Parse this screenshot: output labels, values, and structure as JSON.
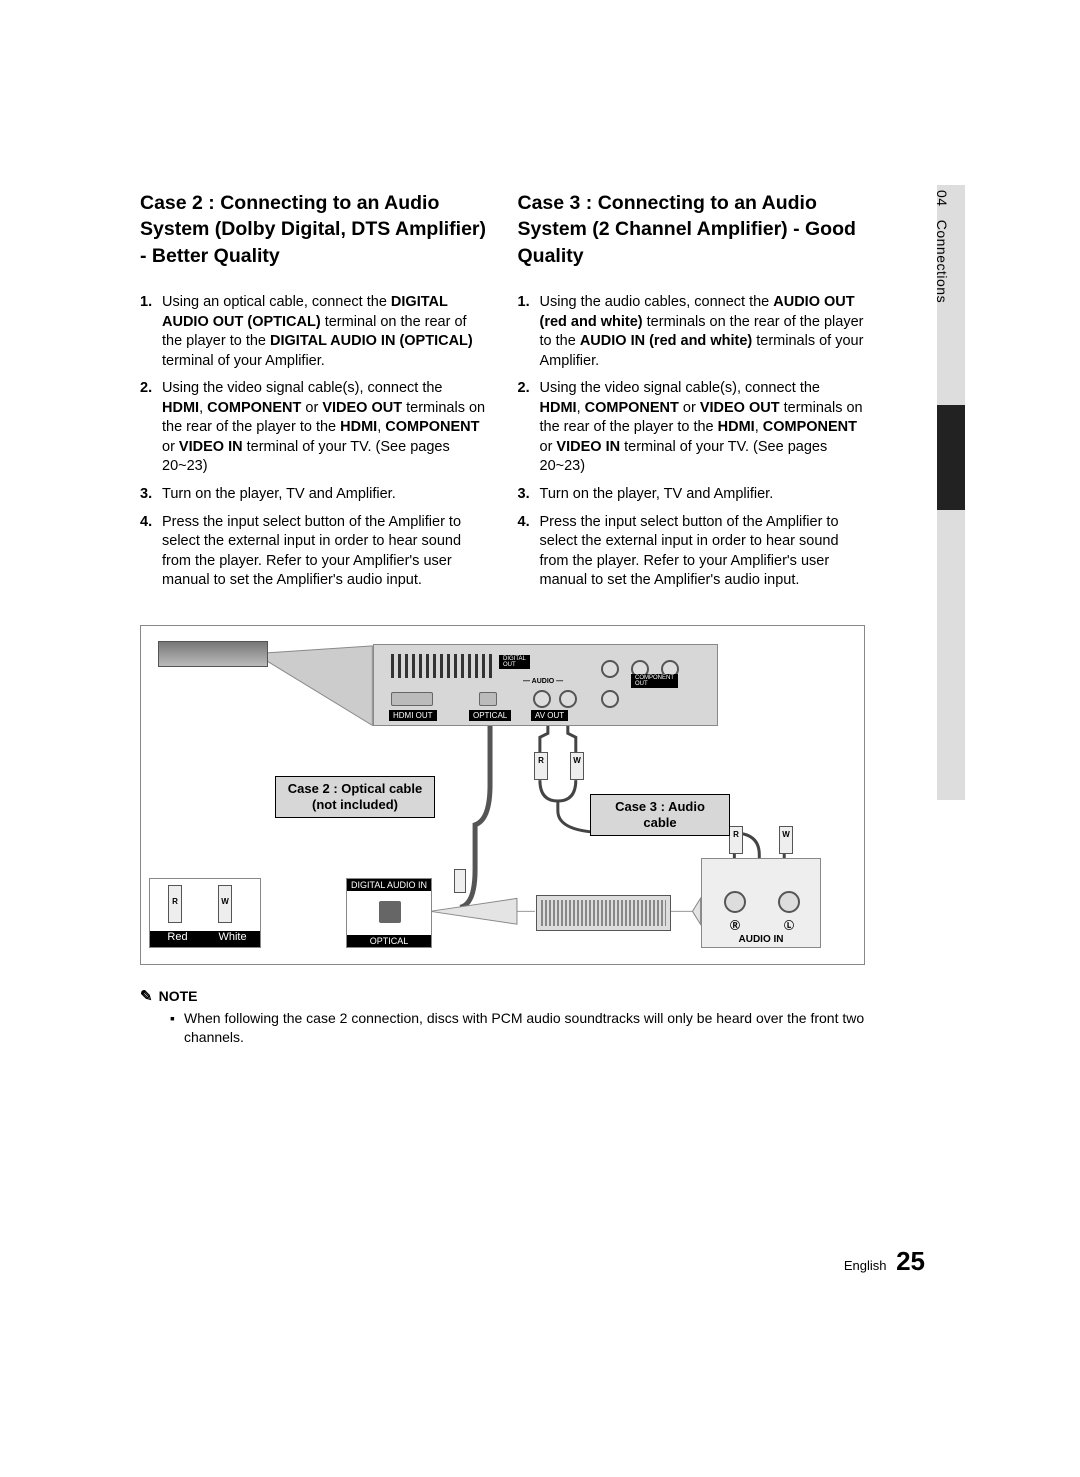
{
  "sideTab": {
    "chapterNum": "04",
    "chapterTitle": "Connections"
  },
  "case2": {
    "heading": "Case 2 : Connecting to an Audio System (Dolby Digital, DTS Amplifier) - Better Quality",
    "steps": [
      "Using an optical cable, connect the <b>DIGITAL AUDIO OUT (OPTICAL)</b> terminal on the rear of the player to the <b>DIGITAL AUDIO IN (OPTICAL)</b> terminal of your Amplifier.",
      "Using the video signal cable(s), connect the <b>HDMI</b>, <b>COMPONENT</b> or <b>VIDEO OUT</b> terminals on the rear of the player to the <b>HDMI</b>, <b>COMPONENT</b> or <b>VIDEO IN</b> terminal of your TV. (See pages 20~23)",
      "Turn on the player, TV and Amplifier.",
      "Press the input select button of the Amplifier to select the external input in order to hear sound from the player. Refer to your Amplifier's user manual to set the Amplifier's audio input."
    ]
  },
  "case3": {
    "heading": "Case 3 : Connecting to an Audio System (2 Channel Amplifier) - Good Quality",
    "steps": [
      "Using the audio cables, connect the <b>AUDIO OUT (red and white)</b> terminals on the rear of the player to the <b>AUDIO IN (red and white)</b> terminals of your Amplifier.",
      "Using the video signal cable(s), connect the <b>HDMI</b>, <b>COMPONENT</b> or <b>VIDEO OUT</b> terminals on the rear of the player to the <b>HDMI</b>, <b>COMPONENT</b> or <b>VIDEO IN</b> terminal of your TV. (See pages 20~23)",
      "Turn on the player, TV and Amplifier.",
      "Press the input select button of the Amplifier to select the external input in order to hear sound from the player. Refer to your Amplifier's user manual to set the Amplifier's audio input."
    ]
  },
  "diagram": {
    "case2Label": "Case 2 : Optical cable\n(not included)",
    "case3Label": "Case 3 : Audio cable",
    "digitalAudioIn": "DIGITAL AUDIO IN",
    "optical": "OPTICAL",
    "audioIn": "AUDIO IN",
    "red": "Red",
    "white": "White",
    "r": "R",
    "w": "W",
    "rCircle": "R",
    "lCircle": "L",
    "hdmiOut": "HDMI OUT",
    "opticalPort": "OPTICAL",
    "avOut": "AV OUT",
    "digitalOut": "DIGITAL\nOUT",
    "component": "COMPONENT\nOUT",
    "audio": "— AUDIO —"
  },
  "note": {
    "heading": "NOTE",
    "items": [
      "When following the case 2 connection, discs with PCM audio soundtracks will only be heard over the front two channels."
    ]
  },
  "footer": {
    "lang": "English",
    "page": "25"
  }
}
